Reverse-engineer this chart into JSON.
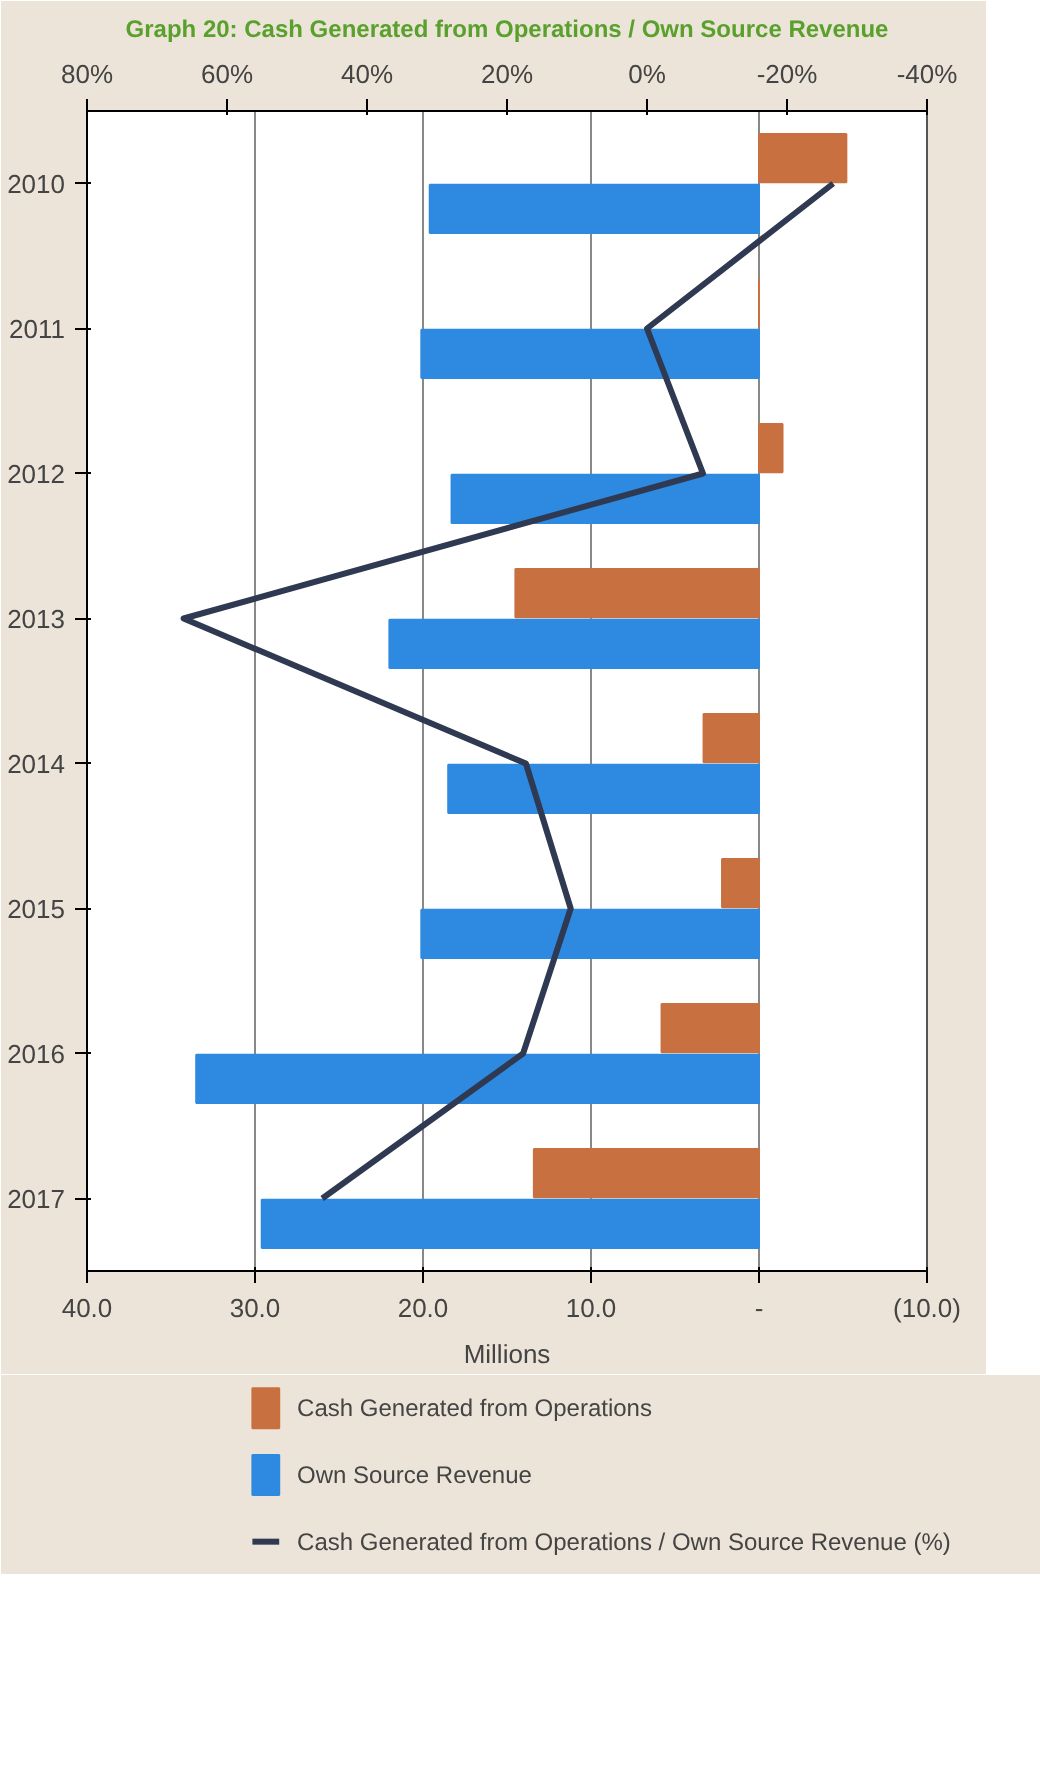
{
  "chart_data": {
    "type": "bar",
    "orientation": "horizontal",
    "title": "Graph 20: Cash Generated from Operations / Own Source Revenue",
    "xlabel": "Millions",
    "categories": [
      "2010",
      "2011",
      "2012",
      "2013",
      "2014",
      "2015",
      "2016",
      "2017"
    ],
    "series": [
      {
        "name": "Cash Generated from Operations",
        "color": "#c8703f",
        "values": [
          -5.2,
          0,
          -1.4,
          14.5,
          3.3,
          2.2,
          5.8,
          13.4
        ]
      },
      {
        "name": "Own Source Revenue",
        "color": "#2e8ae0",
        "values": [
          19.6,
          20.1,
          18.3,
          22.0,
          18.5,
          20.1,
          33.5,
          29.6
        ]
      },
      {
        "name": "Cash Generated from Operations / Own Source Revenue (%)",
        "type": "line",
        "axis": "x2",
        "color": "#2f3a52",
        "values": [
          -26.6,
          0,
          -8.0,
          66.2,
          17.3,
          10.9,
          17.7,
          46.4
        ]
      }
    ],
    "xlim": [
      40,
      -10
    ],
    "xticks": [
      {
        "value": 40,
        "label": "40.0"
      },
      {
        "value": 30,
        "label": "30.0"
      },
      {
        "value": 20,
        "label": "20.0"
      },
      {
        "value": 10,
        "label": "10.0"
      },
      {
        "value": 0,
        "label": "-"
      },
      {
        "value": -10,
        "label": "(10.0)"
      }
    ],
    "x2lim": [
      80,
      -40
    ],
    "x2ticks": [
      {
        "value": 80,
        "label": "80%"
      },
      {
        "value": 60,
        "label": "60%"
      },
      {
        "value": 40,
        "label": "40%"
      },
      {
        "value": 20,
        "label": "20%"
      },
      {
        "value": 0,
        "label": "0%"
      },
      {
        "value": -20,
        "label": "-20%"
      },
      {
        "value": -40,
        "label": "-40%"
      }
    ],
    "grid": "x",
    "legend": "bottom"
  }
}
